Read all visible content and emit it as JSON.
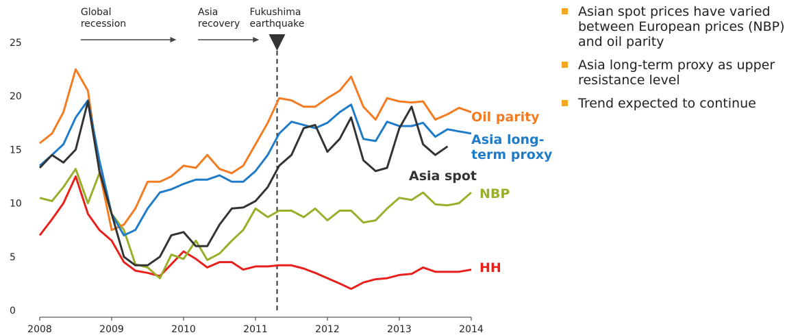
{
  "chart_data": {
    "type": "line",
    "x": [
      2008,
      2008.17,
      2008.33,
      2008.5,
      2008.67,
      2008.83,
      2009,
      2009.17,
      2009.33,
      2009.5,
      2009.67,
      2009.83,
      2010,
      2010.17,
      2010.33,
      2010.5,
      2010.67,
      2010.83,
      2011,
      2011.17,
      2011.33,
      2011.5,
      2011.67,
      2011.83,
      2012,
      2012.17,
      2012.33,
      2012.5,
      2012.67,
      2012.83,
      2013,
      2013.17,
      2013.33,
      2013.5,
      2013.67,
      2013.83,
      2014
    ],
    "series": [
      {
        "name": "Oil parity",
        "color": "#f47b20",
        "values": [
          15.6,
          16.5,
          18.5,
          22.5,
          20.5,
          13,
          7.5,
          8,
          9.5,
          12,
          12,
          12.5,
          13.5,
          13.3,
          14.5,
          13.2,
          12.8,
          13.5,
          15.5,
          17.5,
          19.8,
          19.6,
          19.0,
          19.0,
          19.8,
          20.5,
          21.8,
          19,
          17.8,
          19.8,
          19.5,
          19.4,
          19.5,
          17.8,
          18.3,
          18.9,
          18.5
        ]
      },
      {
        "name": "Asia long-term proxy",
        "color": "#1f7bc8",
        "values": [
          13.5,
          14.5,
          15.5,
          18,
          19.6,
          14,
          9,
          7,
          7.5,
          9.5,
          11,
          11.3,
          11.8,
          12.2,
          12.2,
          12.6,
          12,
          12,
          13,
          14.5,
          16.5,
          17.6,
          17.3,
          17.0,
          17.5,
          18.5,
          19.2,
          16,
          15.8,
          17.6,
          17.2,
          17.2,
          17.5,
          16.2,
          16.9,
          16.7,
          16.5
        ]
      },
      {
        "name": "Asia spot",
        "color": "#333333",
        "values": [
          13.3,
          14.5,
          13.8,
          15,
          19.5,
          13,
          9,
          5,
          4.2,
          4.2,
          5,
          7,
          7.3,
          6,
          6,
          8,
          9.5,
          9.6,
          10.2,
          11.5,
          13.5,
          14.5,
          17,
          17.3,
          14.8,
          16,
          18,
          14,
          13,
          13.3,
          17,
          19,
          15.5,
          14.5,
          15.3,
          null,
          null
        ]
      },
      {
        "name": "NBP",
        "color": "#9aae2c",
        "values": [
          10.5,
          10.2,
          11.5,
          13.2,
          10,
          12.8,
          9,
          7.5,
          4.3,
          4.0,
          3.0,
          5.2,
          4.8,
          6.5,
          4.7,
          5.3,
          6.5,
          7.5,
          9.5,
          8.7,
          9.3,
          9.3,
          8.7,
          9.5,
          8.4,
          9.3,
          9.3,
          8.2,
          8.4,
          9.5,
          10.5,
          10.3,
          11,
          9.9,
          9.8,
          10.0,
          11
        ]
      },
      {
        "name": "HH",
        "color": "#e8201c",
        "values": [
          7,
          8.5,
          10,
          12.5,
          9,
          7.5,
          6.5,
          4.5,
          3.7,
          3.5,
          3.2,
          4.3,
          5.5,
          4.8,
          4,
          4.5,
          4.5,
          3.8,
          4.1,
          4.1,
          4.2,
          4.2,
          3.9,
          3.5,
          3,
          2.5,
          2.0,
          2.6,
          2.9,
          3.0,
          3.3,
          3.4,
          4.0,
          3.6,
          3.6,
          3.6,
          3.8
        ]
      }
    ],
    "xlim": [
      2008,
      2014
    ],
    "xticks": [
      2008,
      2009,
      2010,
      2011,
      2012,
      2013,
      2014
    ],
    "ylim": [
      0,
      25
    ],
    "yticks": [
      0,
      5,
      10,
      15,
      20,
      25
    ],
    "annotations": [
      {
        "text": [
          "Global",
          "recession"
        ],
        "x": [
          2008.57,
          2009.9
        ]
      },
      {
        "text": [
          "Asia",
          "recovery"
        ],
        "x": [
          2010.2,
          2011.05
        ]
      },
      {
        "text": [
          "Fukushima",
          "earthquake"
        ],
        "x": [
          2011.3
        ]
      }
    ]
  },
  "bullets": [
    "Asian spot prices have varied between European prices (NBP) and oil parity",
    "Asia long-term proxy as upper resistance level",
    "Trend expected to continue"
  ]
}
